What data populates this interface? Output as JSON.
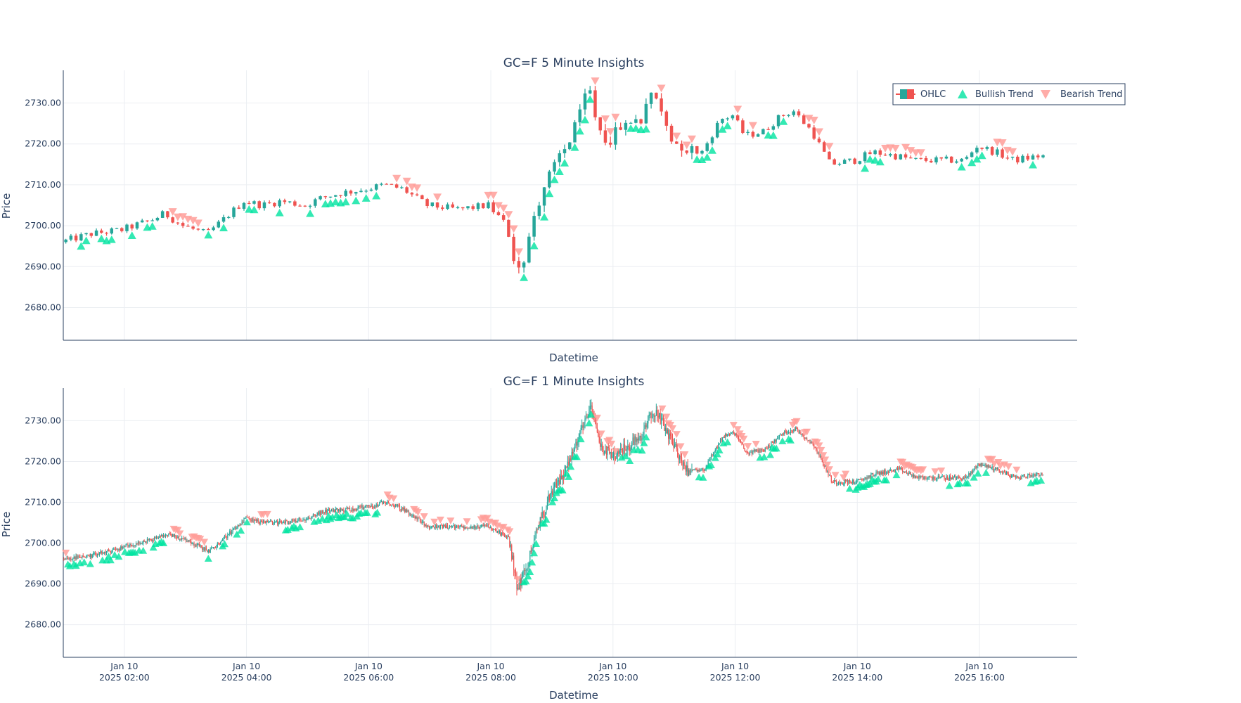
{
  "chart_data": [
    {
      "type": "candlestick",
      "title": "GC=F 5 Minute Insights",
      "xlabel": "Datetime",
      "ylabel": "Price",
      "ylim": [
        2672,
        2738
      ],
      "yticks": [
        "2680.00",
        "2690.00",
        "2700.00",
        "2710.00",
        "2720.00",
        "2730.00"
      ],
      "xlim_hours": [
        1.0,
        17.6
      ],
      "interval_minutes": 5,
      "series": [
        {
          "name": "OHLC",
          "colors": {
            "up": "#26a69a",
            "down": "#ef5350"
          }
        },
        {
          "name": "Bullish Trend",
          "color": "#00e4a0",
          "marker": "triangle-up"
        },
        {
          "name": "Bearish Trend",
          "color": "#ff9e99",
          "marker": "triangle-down"
        }
      ],
      "price_path": [
        [
          1.0,
          2696
        ],
        [
          1.5,
          2698
        ],
        [
          2.0,
          2699
        ],
        [
          2.5,
          2701.5
        ],
        [
          2.7,
          2703
        ],
        [
          3.0,
          2700
        ],
        [
          3.4,
          2698
        ],
        [
          3.7,
          2702
        ],
        [
          4.0,
          2706
        ],
        [
          4.3,
          2705
        ],
        [
          4.6,
          2706
        ],
        [
          5.0,
          2705
        ],
        [
          5.3,
          2707
        ],
        [
          5.6,
          2708
        ],
        [
          6.0,
          2709
        ],
        [
          6.3,
          2710
        ],
        [
          6.6,
          2709
        ],
        [
          7.0,
          2705
        ],
        [
          7.5,
          2704
        ],
        [
          8.0,
          2705
        ],
        [
          8.3,
          2700
        ],
        [
          8.45,
          2690
        ],
        [
          8.6,
          2693
        ],
        [
          8.8,
          2705
        ],
        [
          9.0,
          2712
        ],
        [
          9.3,
          2720
        ],
        [
          9.5,
          2728
        ],
        [
          9.65,
          2733
        ],
        [
          9.8,
          2723
        ],
        [
          10.0,
          2721
        ],
        [
          10.2,
          2725
        ],
        [
          10.5,
          2726
        ],
        [
          10.6,
          2732
        ],
        [
          10.75,
          2731
        ],
        [
          11.0,
          2722
        ],
        [
          11.2,
          2718
        ],
        [
          11.5,
          2718
        ],
        [
          11.8,
          2726
        ],
        [
          12.0,
          2727
        ],
        [
          12.2,
          2722
        ],
        [
          12.5,
          2723
        ],
        [
          12.8,
          2727
        ],
        [
          13.0,
          2728
        ],
        [
          13.3,
          2723
        ],
        [
          13.6,
          2715
        ],
        [
          14.0,
          2716
        ],
        [
          14.3,
          2718
        ],
        [
          14.7,
          2717
        ],
        [
          15.0,
          2716
        ],
        [
          15.5,
          2716
        ],
        [
          15.8,
          2716
        ],
        [
          16.0,
          2719.5
        ],
        [
          16.3,
          2718
        ],
        [
          16.6,
          2716
        ],
        [
          17.0,
          2717
        ]
      ]
    },
    {
      "type": "candlestick",
      "title": "GC=F 1 Minute Insights",
      "xlabel": "Datetime",
      "ylabel": "Price",
      "ylim": [
        2672,
        2738
      ],
      "yticks": [
        "2680.00",
        "2690.00",
        "2700.00",
        "2710.00",
        "2720.00",
        "2730.00"
      ],
      "xlim_hours": [
        1.0,
        17.6
      ],
      "interval_minutes": 1,
      "price_path": [
        [
          1.0,
          2696
        ],
        [
          1.5,
          2697
        ],
        [
          2.0,
          2699
        ],
        [
          2.5,
          2701
        ],
        [
          2.7,
          2702
        ],
        [
          3.0,
          2701
        ],
        [
          3.4,
          2698
        ],
        [
          3.7,
          2702
        ],
        [
          4.0,
          2706
        ],
        [
          4.3,
          2705
        ],
        [
          4.6,
          2705
        ],
        [
          5.0,
          2706
        ],
        [
          5.3,
          2708
        ],
        [
          5.6,
          2708
        ],
        [
          6.0,
          2709
        ],
        [
          6.3,
          2710
        ],
        [
          6.6,
          2708
        ],
        [
          7.0,
          2704
        ],
        [
          7.5,
          2704
        ],
        [
          8.0,
          2704
        ],
        [
          8.3,
          2701
        ],
        [
          8.45,
          2689
        ],
        [
          8.6,
          2694
        ],
        [
          8.8,
          2705
        ],
        [
          9.0,
          2712
        ],
        [
          9.3,
          2720
        ],
        [
          9.5,
          2728
        ],
        [
          9.65,
          2733
        ],
        [
          9.8,
          2724
        ],
        [
          10.0,
          2721
        ],
        [
          10.2,
          2723
        ],
        [
          10.5,
          2726
        ],
        [
          10.6,
          2732
        ],
        [
          10.75,
          2731
        ],
        [
          11.0,
          2724
        ],
        [
          11.2,
          2718
        ],
        [
          11.5,
          2718
        ],
        [
          11.8,
          2726
        ],
        [
          12.0,
          2727
        ],
        [
          12.2,
          2722
        ],
        [
          12.5,
          2723
        ],
        [
          12.8,
          2727
        ],
        [
          13.0,
          2728
        ],
        [
          13.3,
          2724
        ],
        [
          13.6,
          2715
        ],
        [
          14.0,
          2715
        ],
        [
          14.3,
          2717
        ],
        [
          14.7,
          2718
        ],
        [
          15.0,
          2716
        ],
        [
          15.5,
          2716
        ],
        [
          15.8,
          2716
        ],
        [
          16.0,
          2719.5
        ],
        [
          16.3,
          2718
        ],
        [
          16.6,
          2716
        ],
        [
          17.0,
          2717
        ]
      ]
    }
  ],
  "x_ticks": [
    {
      "hour": 2,
      "line1": "Jan 10",
      "line2": "2025 02:00"
    },
    {
      "hour": 4,
      "line1": "Jan 10",
      "line2": "2025 04:00"
    },
    {
      "hour": 6,
      "line1": "Jan 10",
      "line2": "2025 06:00"
    },
    {
      "hour": 8,
      "line1": "Jan 10",
      "line2": "2025 08:00"
    },
    {
      "hour": 10,
      "line1": "Jan 10",
      "line2": "2025 10:00"
    },
    {
      "hour": 12,
      "line1": "Jan 10",
      "line2": "2025 12:00"
    },
    {
      "hour": 14,
      "line1": "Jan 10",
      "line2": "2025 14:00"
    },
    {
      "hour": 16,
      "line1": "Jan 10",
      "line2": "2025 16:00"
    }
  ],
  "legend": {
    "items": [
      {
        "name": "OHLC"
      },
      {
        "name": "Bullish Trend"
      },
      {
        "name": "Bearish Trend"
      }
    ],
    "position": "top-right"
  }
}
